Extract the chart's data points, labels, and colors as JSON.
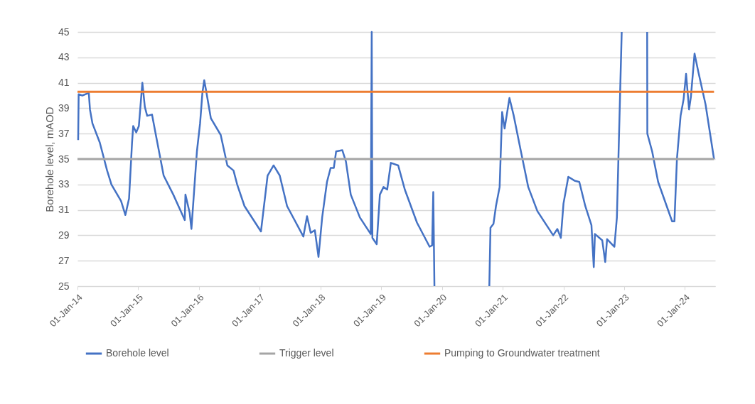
{
  "chart_data": {
    "type": "line",
    "ylabel": "Borehole level, mAOD",
    "xlim": [
      "2014-01-01",
      "2024-07-01"
    ],
    "ylim": [
      25,
      45
    ],
    "xticks": [
      {
        "value": "2014-01-01",
        "label": "01-Jan-14"
      },
      {
        "value": "2015-01-01",
        "label": "01-Jan-15"
      },
      {
        "value": "2016-01-01",
        "label": "01-Jan-16"
      },
      {
        "value": "2017-01-01",
        "label": "01-Jan-17"
      },
      {
        "value": "2018-01-01",
        "label": "01-Jan-18"
      },
      {
        "value": "2019-01-01",
        "label": "01-Jan-19"
      },
      {
        "value": "2020-01-01",
        "label": "01-Jan-20"
      },
      {
        "value": "2021-01-01",
        "label": "01-Jan-21"
      },
      {
        "value": "2022-01-01",
        "label": "01-Jan-22"
      },
      {
        "value": "2023-01-01",
        "label": "01-Jan-23"
      },
      {
        "value": "2024-01-01",
        "label": "01-Jan-24"
      }
    ],
    "yticks": [
      25,
      27,
      29,
      31,
      33,
      35,
      37,
      39,
      41,
      43,
      45
    ],
    "grid": "y",
    "legend": "bottom",
    "series": [
      {
        "name": "Borehole level",
        "color": "#4472c4",
        "x": [
          "2014-01-05",
          "2014-01-08",
          "2014-01-30",
          "2014-03-10",
          "2014-03-17",
          "2014-04-01",
          "2014-05-15",
          "2014-06-28",
          "2014-07-24",
          "2014-09-20",
          "2014-10-16",
          "2014-11-07",
          "2014-11-25",
          "2014-12-02",
          "2014-12-20",
          "2015-01-05",
          "2015-01-26",
          "2015-02-10",
          "2015-02-24",
          "2015-03-25",
          "2015-04-20",
          "2015-06-03",
          "2015-07-31",
          "2015-10-08",
          "2015-10-12",
          "2015-11-06",
          "2015-11-17",
          "2015-12-20",
          "2016-01-08",
          "2016-01-22",
          "2016-02-02",
          "2016-02-13",
          "2016-03-13",
          "2016-05-11",
          "2016-06-20",
          "2016-07-27",
          "2016-08-18",
          "2016-10-01",
          "2017-01-08",
          "2017-02-17",
          "2017-03-25",
          "2017-05-01",
          "2017-06-14",
          "2017-09-20",
          "2017-10-12",
          "2017-11-03",
          "2017-11-28",
          "2017-12-20",
          "2018-01-11",
          "2018-02-09",
          "2018-03-03",
          "2018-03-22",
          "2018-04-05",
          "2018-05-12",
          "2018-06-03",
          "2018-07-02",
          "2018-08-26",
          "2018-10-30",
          "2018-11-05",
          "2018-11-09",
          "2018-12-05",
          "2018-12-24",
          "2019-01-15",
          "2019-02-06",
          "2019-02-28",
          "2019-04-13",
          "2019-05-23",
          "2019-08-04",
          "2019-10-19",
          "2019-11-03",
          "2019-11-10",
          "2019-11-17",
          "2020-05-01",
          "2020-10-12",
          "2020-10-19",
          "2020-11-06",
          "2020-11-21",
          "2020-12-13",
          "2020-12-28",
          "2021-01-12",
          "2021-02-10",
          "2021-03-08",
          "2021-04-20",
          "2021-06-03",
          "2021-07-28",
          "2021-10-31",
          "2021-11-25",
          "2021-12-16",
          "2022-01-01",
          "2022-01-30",
          "2022-03-08",
          "2022-04-06",
          "2022-05-12",
          "2022-06-18",
          "2022-07-02",
          "2022-07-09",
          "2022-08-22",
          "2022-09-09",
          "2022-09-20",
          "2022-11-03",
          "2022-11-18",
          "2022-12-17",
          "2023-03-01",
          "2023-05-19",
          "2023-05-20",
          "2023-06-18",
          "2023-07-24",
          "2023-10-16",
          "2023-10-30",
          "2023-11-14",
          "2023-12-06",
          "2023-12-24",
          "2024-01-08",
          "2024-01-26",
          "2024-02-06",
          "2024-02-28",
          "2024-03-21",
          "2024-05-04",
          "2024-06-24"
        ],
        "values": [
          36.5,
          40.1,
          40.0,
          40.2,
          38.9,
          37.8,
          36.3,
          34.1,
          33.0,
          31.7,
          30.6,
          31.9,
          36.3,
          37.6,
          37.1,
          37.6,
          41.0,
          39.1,
          38.4,
          38.5,
          36.7,
          33.7,
          32.2,
          30.2,
          32.2,
          30.8,
          29.5,
          35.6,
          37.8,
          40.2,
          41.2,
          40.4,
          38.2,
          36.9,
          34.5,
          34.1,
          33.0,
          31.3,
          29.3,
          33.7,
          34.5,
          33.7,
          31.3,
          28.9,
          30.5,
          29.2,
          29.4,
          27.3,
          30.4,
          33.2,
          34.3,
          34.3,
          35.6,
          35.7,
          34.8,
          32.2,
          30.4,
          29.1,
          45,
          28.8,
          28.3,
          32.2,
          32.8,
          32.6,
          34.7,
          34.5,
          32.6,
          30.0,
          28.1,
          28.2,
          32.4,
          25,
          null,
          25,
          29.6,
          29.9,
          31.3,
          32.8,
          38.7,
          37.4,
          39.8,
          38.4,
          35.6,
          32.8,
          30.9,
          29.0,
          29.5,
          28.8,
          31.5,
          33.6,
          33.3,
          33.2,
          31.3,
          29.8,
          26.5,
          29.1,
          28.6,
          26.9,
          28.7,
          28.1,
          30.4,
          45,
          null,
          45,
          37.0,
          35.6,
          33.2,
          30.1,
          30.1,
          35.0,
          38.4,
          39.7,
          41.7,
          38.9,
          39.9,
          43.3,
          41.9,
          39.3,
          35.0
        ]
      },
      {
        "name": "Trigger level",
        "color": "#a5a5a5",
        "x": [
          "2014-01-01",
          "2024-06-24"
        ],
        "values": [
          35,
          35
        ]
      },
      {
        "name": "Pumping to Groundwater treatment",
        "color": "#ed7d31",
        "x": [
          "2014-01-01",
          "2024-06-24"
        ],
        "values": [
          40.3,
          40.3
        ]
      }
    ]
  }
}
